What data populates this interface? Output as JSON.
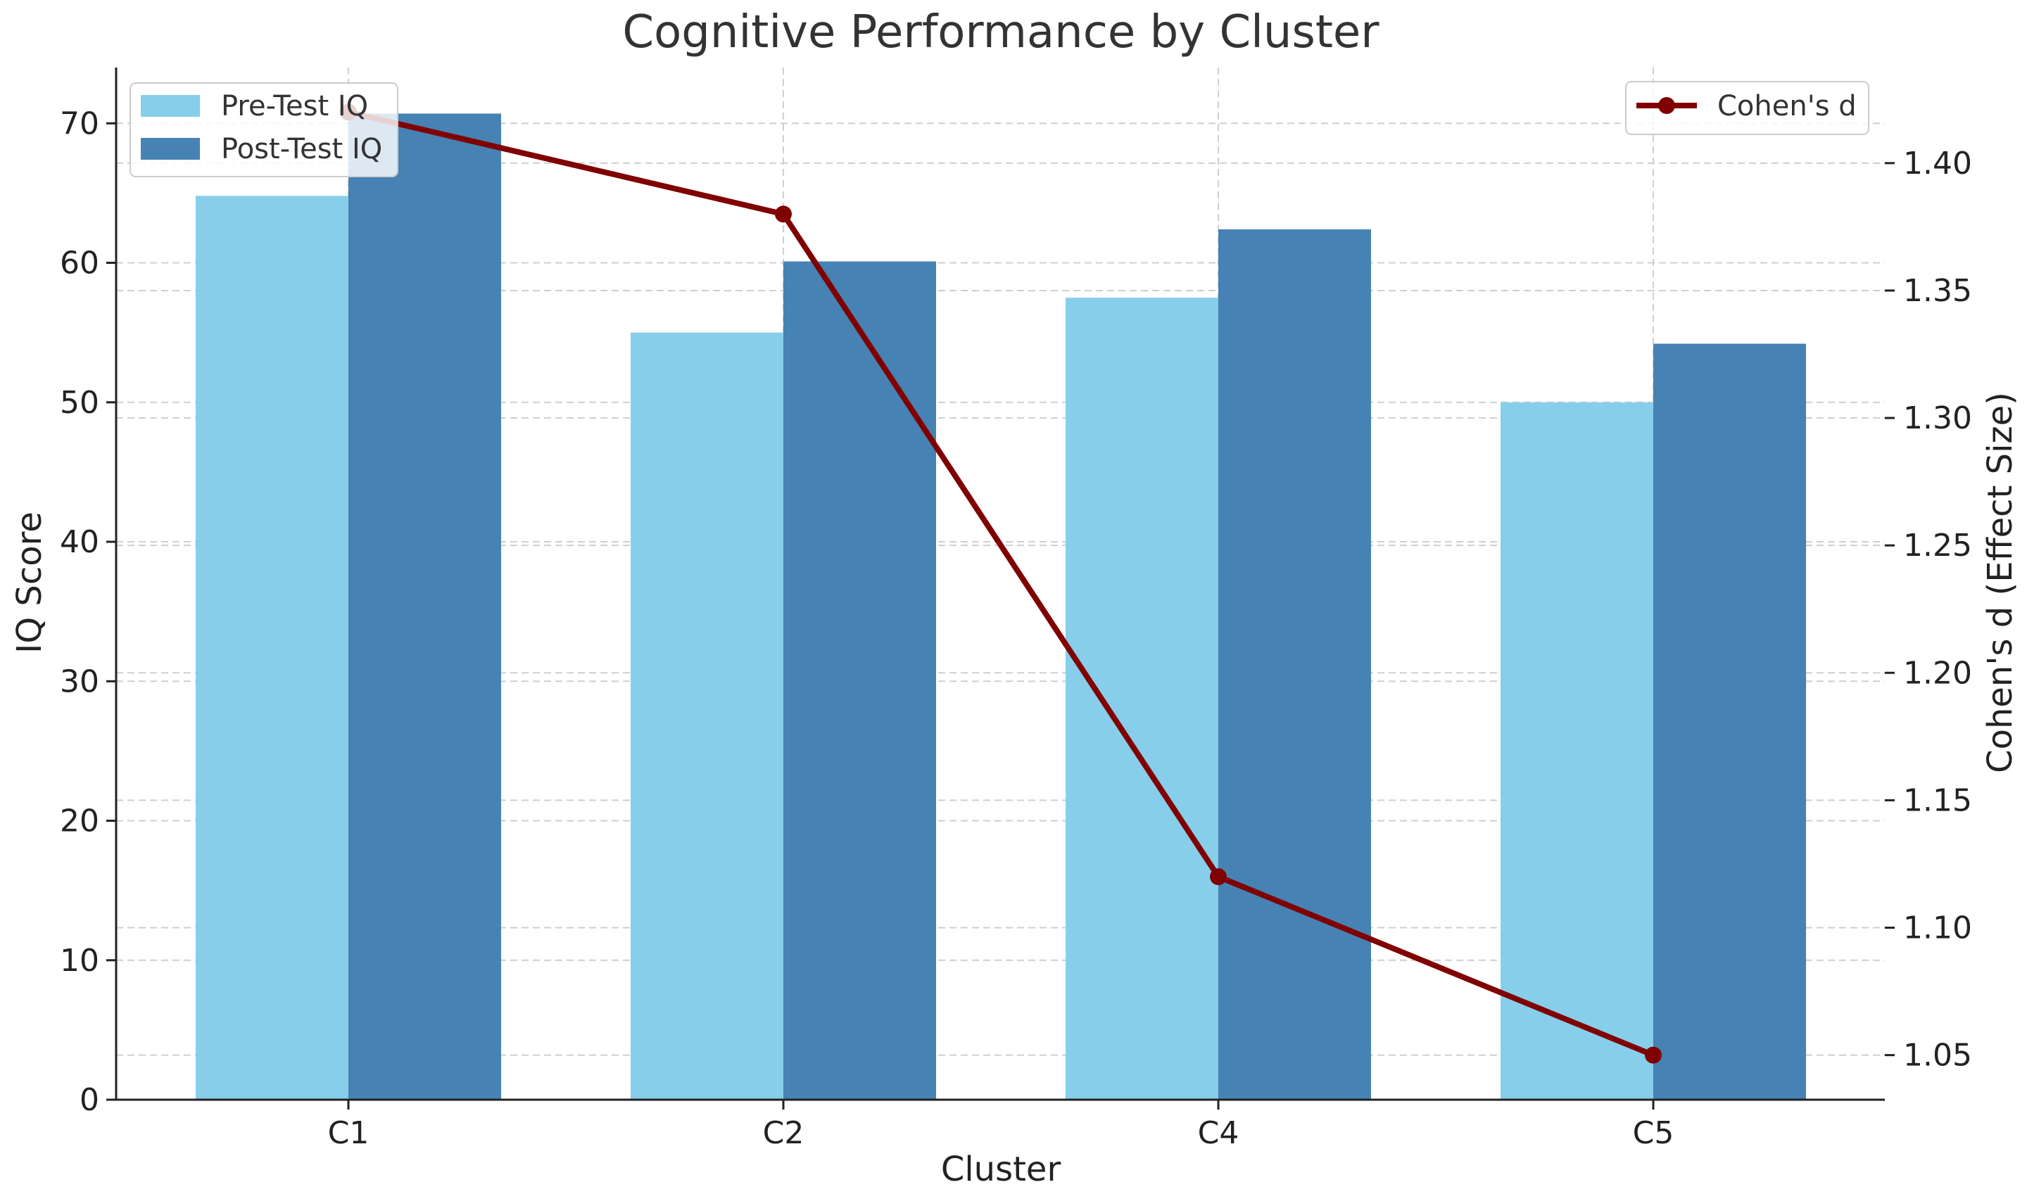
{
  "chart_data": {
    "type": "bar",
    "title": "Cognitive Performance by Cluster",
    "xlabel": "Cluster",
    "ylabel": "IQ Score",
    "y2label": "Cohen's d (Effect Size)",
    "categories": [
      "C1",
      "C2",
      "C4",
      "C5"
    ],
    "series": [
      {
        "name": "Pre-Test IQ",
        "type": "bar",
        "axis": "left",
        "color": "#87CEEB",
        "values": [
          64.8,
          55.0,
          57.5,
          50.0
        ]
      },
      {
        "name": "Post-Test IQ",
        "type": "bar",
        "axis": "left",
        "color": "#4682B4",
        "values": [
          70.7,
          60.1,
          62.4,
          54.2
        ]
      },
      {
        "name": "Cohen's d",
        "type": "line",
        "axis": "right",
        "color": "#800000",
        "values": [
          1.42,
          1.38,
          1.12,
          1.05
        ]
      }
    ],
    "ylim": [
      0,
      74
    ],
    "y_ticks": [
      0,
      10,
      20,
      30,
      40,
      50,
      60,
      70
    ],
    "y2lim": [
      1.0325,
      1.4375
    ],
    "y2_ticks": [
      "1.05",
      "1.10",
      "1.15",
      "1.20",
      "1.25",
      "1.30",
      "1.35",
      "1.40"
    ],
    "grid": true,
    "legend_left_position": "top-left",
    "legend_right_position": "top-right"
  }
}
